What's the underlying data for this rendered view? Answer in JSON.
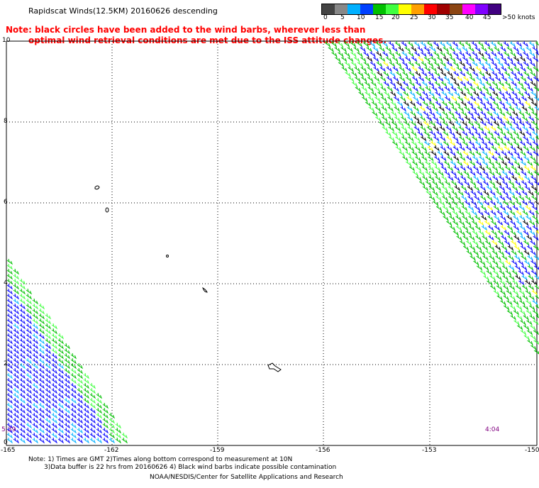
{
  "title": "Rapidscat Winds(12.5KM) 20160626 descending",
  "note_line1": "Note: black circles have been added to the wind barbs, wherever less than",
  "note_line2": "optimal wind retrieval conditions are met due to the ISS attitude changes.",
  "colorbar": {
    "labels": [
      "0",
      "5",
      "10",
      "15",
      "20",
      "25",
      "30",
      "35",
      "40",
      "45",
      ">50 knots"
    ],
    "colors": [
      "#444444",
      "#888888",
      "#00b0ff",
      "#0040ff",
      "#00c000",
      "#40ff40",
      "#ffff00",
      "#ffa000",
      "#ff0000",
      "#a00000",
      "#8b4513",
      "#ff00ff",
      "#8000ff",
      "#400080"
    ]
  },
  "axes": {
    "x_ticks": [
      "-165",
      "-162",
      "-159",
      "-156",
      "-153",
      "-150"
    ],
    "y_ticks": [
      "10",
      "8",
      "6",
      "4",
      "2",
      "0"
    ]
  },
  "times": {
    "left": "5:39",
    "right": "4:04"
  },
  "footer": {
    "line1": "Note: 1) Times are GMT 2)Times along bottom correspond to measurement at 10N",
    "line2": "3)Data buffer is 22 hrs from 20160626 4) Black wind barbs indicate possible contamination",
    "line3": "NOAA/NESDIS/Center for Satellite Applications and Research"
  }
}
